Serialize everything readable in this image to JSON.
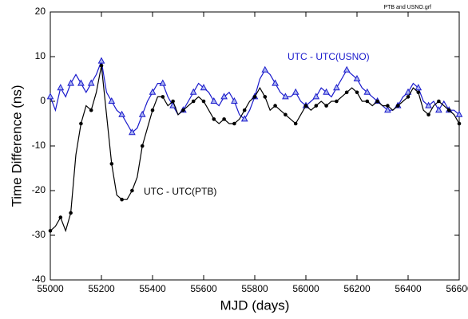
{
  "chart_data": {
    "type": "line",
    "file_label": "PTB and USNO.grf",
    "xlabel": "MJD (days)",
    "ylabel": "Time Difference (ns)",
    "x": [
      55000,
      55020,
      55040,
      55060,
      55080,
      55100,
      55120,
      55140,
      55160,
      55180,
      55200,
      55220,
      55240,
      55260,
      55280,
      55300,
      55320,
      55340,
      55360,
      55380,
      55400,
      55420,
      55440,
      55460,
      55480,
      55500,
      55520,
      55540,
      55560,
      55580,
      55600,
      55620,
      55640,
      55660,
      55680,
      55700,
      55720,
      55740,
      55760,
      55780,
      55800,
      55820,
      55840,
      55860,
      55880,
      55900,
      55920,
      55940,
      55960,
      55980,
      56000,
      56020,
      56040,
      56060,
      56080,
      56100,
      56120,
      56140,
      56160,
      56180,
      56200,
      56220,
      56240,
      56260,
      56280,
      56300,
      56320,
      56340,
      56360,
      56380,
      56400,
      56420,
      56440,
      56460,
      56480,
      56500,
      56520,
      56540,
      56560,
      56580,
      56600
    ],
    "series": [
      {
        "name": "UTC - UTC(USNO)",
        "color": "#1a1acc",
        "marker": "triangle",
        "values": [
          1,
          -2,
          3,
          1,
          4,
          6,
          4,
          2,
          4,
          6,
          9,
          2,
          0,
          -2,
          -3,
          -5,
          -7,
          -6,
          -3,
          0,
          2,
          4,
          4,
          1,
          -1,
          -3,
          -2,
          0,
          2,
          4,
          3,
          2,
          0,
          -1,
          1,
          2,
          0,
          -3,
          -4,
          -2,
          1,
          5,
          7,
          6,
          4,
          2,
          1,
          1,
          2,
          0,
          -1,
          0,
          1,
          3,
          2,
          1,
          3,
          5,
          7,
          6,
          5,
          3,
          2,
          1,
          0,
          -1,
          -2,
          -2,
          -1,
          1,
          2,
          4,
          3,
          0,
          -1,
          0,
          -2,
          0,
          -2,
          -2,
          -3
        ]
      },
      {
        "name": "UTC - UTC(PTB)",
        "color": "#000000",
        "marker": "circle",
        "values": [
          -29,
          -28,
          -26,
          -29,
          -25,
          -12,
          -5,
          -1,
          -2,
          2,
          8,
          -3,
          -14,
          -21,
          -22,
          -22,
          -20,
          -17,
          -10,
          -6,
          -2,
          1,
          1,
          -1,
          0,
          -3,
          -2,
          -1,
          0,
          1,
          0,
          -2,
          -4,
          -5,
          -4,
          -5,
          -5,
          -4,
          -2,
          0,
          1,
          3,
          1,
          -2,
          -1,
          -2,
          -3,
          -4,
          -5,
          -3,
          -1,
          -2,
          -1,
          0,
          -1,
          0,
          0,
          1,
          2,
          3,
          2,
          0,
          0,
          -1,
          0,
          -1,
          -1,
          -2,
          -1,
          0,
          1,
          3,
          2,
          -2,
          -3,
          -1,
          0,
          -1,
          -2,
          -3,
          -5
        ]
      }
    ],
    "xlim": [
      55000,
      56600
    ],
    "xticks": [
      55000,
      55200,
      55400,
      55600,
      55800,
      56000,
      56200,
      56400,
      56600
    ],
    "ylim": [
      -40,
      20
    ],
    "yticks": [
      -40,
      -30,
      -20,
      -10,
      0,
      10,
      20
    ]
  }
}
